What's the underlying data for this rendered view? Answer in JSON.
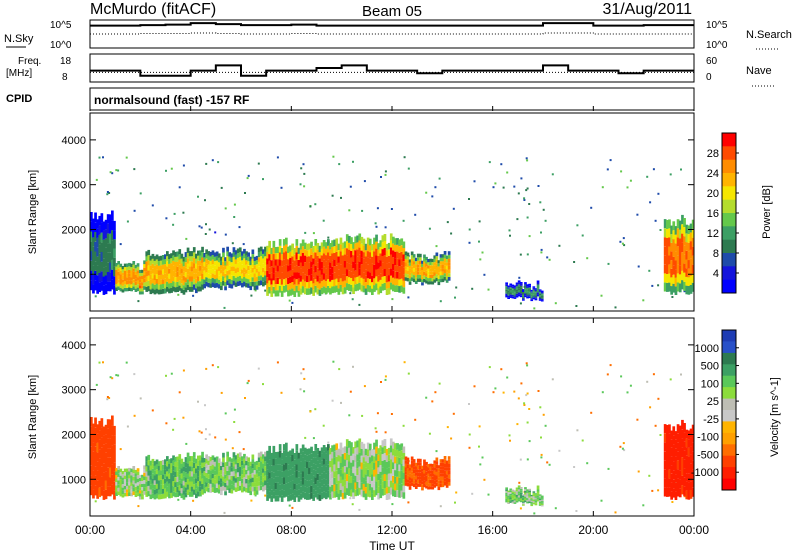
{
  "header": {
    "station": "McMurdo (fitACF)",
    "beam": "Beam 05",
    "date": "31/Aug/2011"
  },
  "noise_panel": {
    "left_label": "N.Sky",
    "right_label": "N.Search",
    "ticks_left": [
      "10^5",
      "10^0"
    ],
    "ticks_right": [
      "10^5",
      "10^0"
    ],
    "sky_level_log10": [
      4.1,
      4.1,
      4.2,
      4.3,
      4.6,
      4.4,
      4.2,
      4.2,
      4.3,
      4.1,
      4.1,
      4.1,
      4.1,
      4.1,
      4.1,
      4.1,
      4.1,
      4.1,
      4.6,
      4.6,
      4.1,
      4.1,
      4.2,
      4.2
    ],
    "search_level_log10": [
      2.5,
      2.5,
      2.6,
      2.6,
      2.7,
      2.6,
      2.5,
      2.5,
      2.6,
      2.5,
      2.5,
      2.5,
      2.5,
      2.5,
      2.5,
      2.5,
      2.5,
      2.5,
      2.7,
      2.7,
      2.5,
      2.5,
      2.5,
      2.5
    ]
  },
  "freq_panel": {
    "left_label_1": "Freq.",
    "left_label_2": "[MHz]",
    "right_label": "Nave",
    "ticks_left": [
      "18",
      "8"
    ],
    "ticks_right": [
      "60",
      "0"
    ],
    "freq_mhz": [
      12,
      12,
      10,
      10,
      12,
      14,
      10,
      12,
      12,
      13,
      14,
      12,
      12,
      11,
      12,
      12,
      12,
      12,
      14,
      12,
      12,
      11,
      12,
      12
    ],
    "nave": [
      20,
      20,
      20,
      20,
      20,
      20,
      20,
      20,
      20,
      20,
      20,
      20,
      20,
      20,
      20,
      20,
      20,
      20,
      20,
      20,
      20,
      20,
      20,
      20
    ]
  },
  "cpid": {
    "label": "CPID",
    "text": "normalsound (fast) -157 RF"
  },
  "power_panel": {
    "ylabel": "Slant Range [km]",
    "cb_label": "Power [dB]",
    "cb_ticks": [
      "28",
      "24",
      "20",
      "16",
      "12",
      "8",
      "4"
    ],
    "cb_colors": [
      "#ff0000",
      "#ff4b00",
      "#ff8c00",
      "#ffb400",
      "#f5e600",
      "#b4dc2d",
      "#64c84b",
      "#3c9f64",
      "#2d7a50",
      "#1e4baa",
      "#1414dc",
      "#0000ff"
    ]
  },
  "velocity_panel": {
    "ylabel": "Slant Range [km]",
    "cb_label": "Velocity [m s^-1]",
    "cb_ticks": [
      "1000",
      "500",
      "100",
      "25",
      "-25",
      "-100",
      "-500",
      "-1000"
    ],
    "cb_colors": [
      "#1e3cb4",
      "#2850c8",
      "#2d7a50",
      "#3ca064",
      "#5ac85a",
      "#8cdc3c",
      "#bebeb4",
      "#c8c8c8",
      "#ffb400",
      "#ffa000",
      "#ff6e00",
      "#ff4000",
      "#ff1e00",
      "#ff0000"
    ]
  },
  "range_ticks": [
    "4000",
    "3000",
    "2000",
    "1000"
  ],
  "time_axis": {
    "label": "Time UT",
    "ticks": [
      "00:00",
      "04:00",
      "08:00",
      "12:00",
      "16:00",
      "20:00",
      "00:00"
    ]
  },
  "chart_data": {
    "type": "heatmap",
    "title": "McMurdo (fitACF) Beam 05 31/Aug/2011",
    "xlabel": "Time UT",
    "ylabel": "Slant Range [km]",
    "xlim_hours": [
      0,
      24
    ],
    "ylim_km": [
      180,
      4600
    ],
    "echo_regions": [
      {
        "t_start": 0.0,
        "t_end": 1.0,
        "r_low": 600,
        "r_high": 2300,
        "power_db": 10,
        "velocity": -150
      },
      {
        "t_start": 1.0,
        "t_end": 2.2,
        "r_low": 600,
        "r_high": 1200,
        "power_db": 26,
        "velocity": 40
      },
      {
        "t_start": 2.2,
        "t_end": 4.5,
        "r_low": 600,
        "r_high": 1500,
        "power_db": 24,
        "velocity": 80
      },
      {
        "t_start": 4.5,
        "t_end": 7.0,
        "r_low": 700,
        "r_high": 1500,
        "power_db": 22,
        "velocity": 60
      },
      {
        "t_start": 7.0,
        "t_end": 9.5,
        "r_low": 550,
        "r_high": 1700,
        "power_db": 30,
        "velocity": 200
      },
      {
        "t_start": 9.5,
        "t_end": 12.5,
        "r_low": 600,
        "r_high": 1800,
        "power_db": 30,
        "velocity": 40
      },
      {
        "t_start": 12.5,
        "t_end": 14.3,
        "r_low": 800,
        "r_high": 1400,
        "power_db": 24,
        "velocity": -120
      },
      {
        "t_start": 16.5,
        "t_end": 18.0,
        "r_low": 450,
        "r_high": 750,
        "power_db": 12,
        "velocity": 60
      },
      {
        "t_start": 22.8,
        "t_end": 24.0,
        "r_low": 600,
        "r_high": 2200,
        "power_db": 28,
        "velocity": -300
      }
    ]
  }
}
